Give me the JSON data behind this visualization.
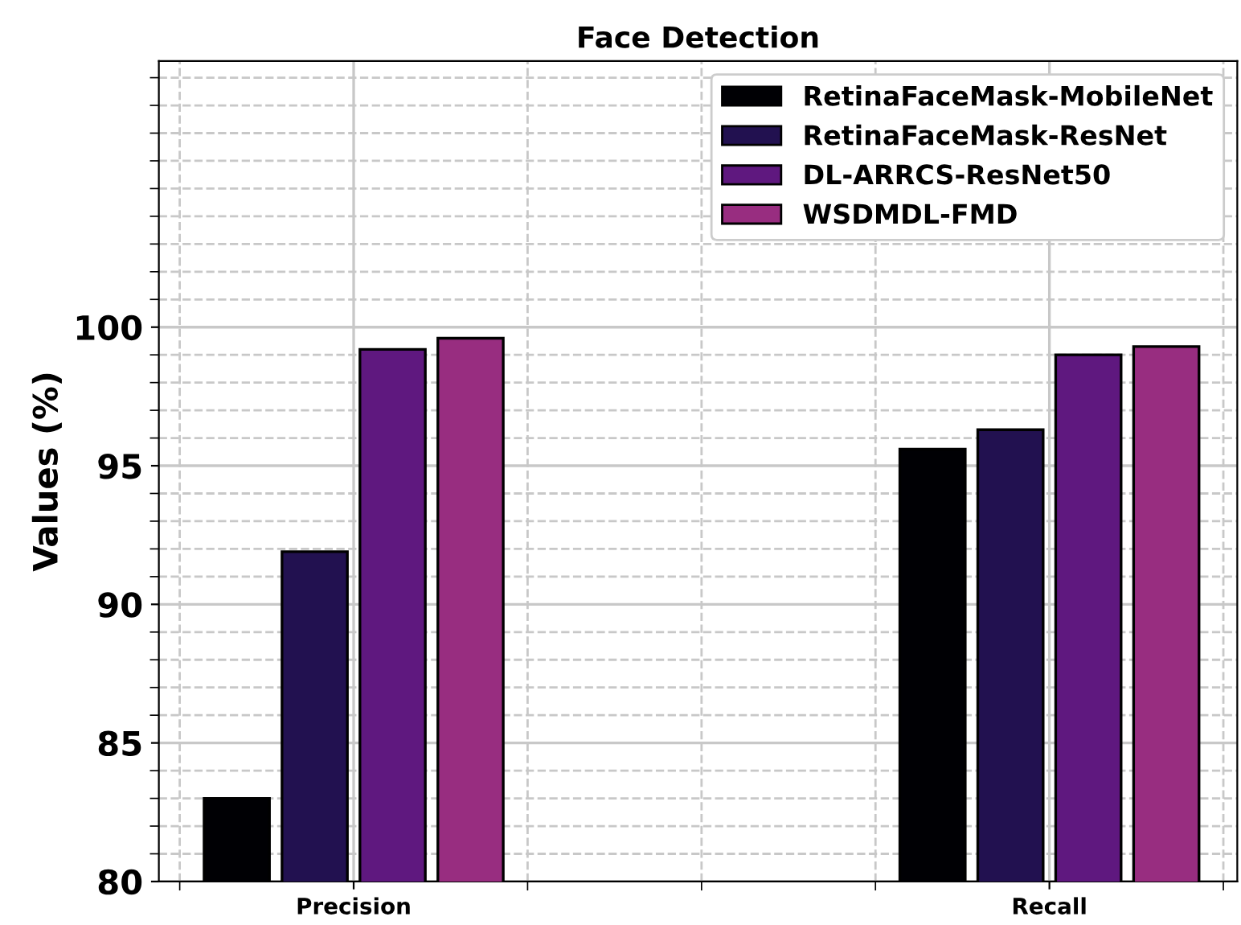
{
  "chart_data": {
    "type": "bar",
    "title": "Face Detection",
    "ylabel": "Values (%)",
    "categories": [
      "Precision",
      "Recall"
    ],
    "series": [
      {
        "name": "RetinaFaceMask-MobileNet",
        "color": "#000004",
        "values": [
          83.0,
          95.6
        ]
      },
      {
        "name": "RetinaFaceMask-ResNet",
        "color": "#221150",
        "values": [
          91.9,
          96.3
        ]
      },
      {
        "name": "DL-ARRCS-ResNet50",
        "color": "#5f187f",
        "values": [
          99.2,
          99.0
        ]
      },
      {
        "name": "WSDMDL-FMD",
        "color": "#982d80",
        "values": [
          99.6,
          99.3
        ]
      }
    ],
    "ylim": [
      80,
      109.6
    ],
    "yticks": [
      80,
      85,
      90,
      95,
      100
    ],
    "grid": true,
    "legend": "top right"
  }
}
